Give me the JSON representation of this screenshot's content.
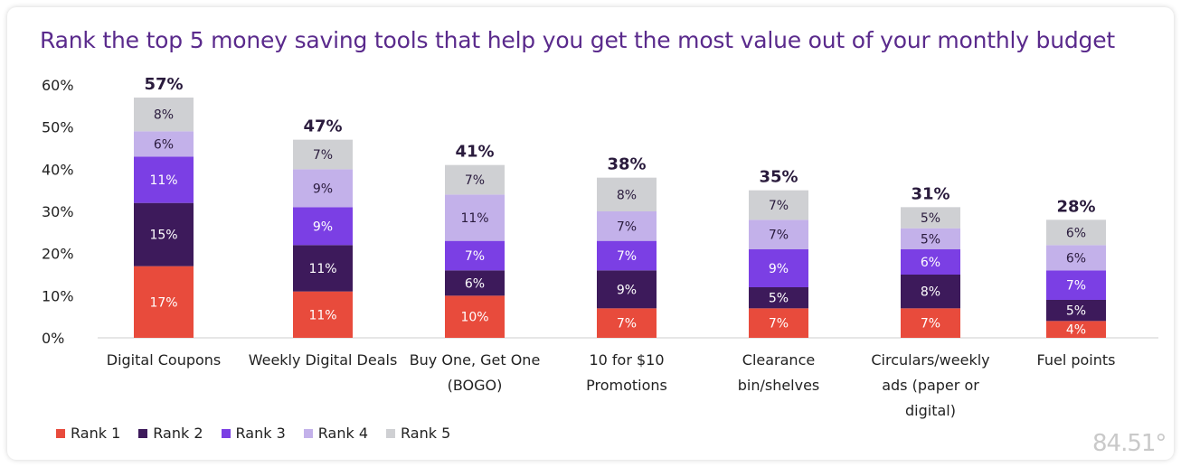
{
  "chart_data": {
    "type": "bar",
    "stacked": true,
    "title": "Rank the top 5 money saving tools that help you get the most value out of your monthly budget",
    "xlabel": "",
    "ylabel": "",
    "ylim": [
      0,
      60
    ],
    "yticks": [
      "0%",
      "10%",
      "20%",
      "30%",
      "40%",
      "50%",
      "60%"
    ],
    "categories": [
      [
        "Digital Coupons"
      ],
      [
        "Weekly Digital Deals"
      ],
      [
        "Buy One, Get One",
        "(BOGO)"
      ],
      [
        "10 for $10",
        "Promotions"
      ],
      [
        "Clearance",
        "bin/shelves"
      ],
      [
        "Circulars/weekly",
        "ads (paper or",
        "digital)"
      ],
      [
        "Fuel points"
      ]
    ],
    "totals": [
      "57%",
      "47%",
      "41%",
      "38%",
      "35%",
      "31%",
      "28%"
    ],
    "series": [
      {
        "name": "Rank 1",
        "color": "#e84b3c",
        "values": [
          17,
          11,
          10,
          7,
          7,
          7,
          4
        ]
      },
      {
        "name": "Rank 2",
        "color": "#3d1a5b",
        "values": [
          15,
          11,
          6,
          9,
          5,
          8,
          5
        ]
      },
      {
        "name": "Rank 3",
        "color": "#7b3fe4",
        "values": [
          11,
          9,
          7,
          7,
          9,
          6,
          7
        ]
      },
      {
        "name": "Rank 4",
        "color": "#c3b1ea",
        "values": [
          6,
          9,
          11,
          7,
          7,
          5,
          6
        ]
      },
      {
        "name": "Rank 5",
        "color": "#cfd0d3",
        "values": [
          8,
          7,
          7,
          8,
          7,
          5,
          6
        ]
      }
    ],
    "legend_position": "bottom-left",
    "grid": false
  },
  "logo": {
    "text": "84.51°"
  }
}
